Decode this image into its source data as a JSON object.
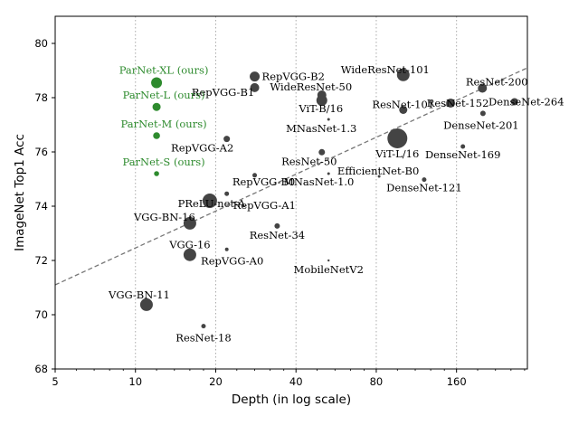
{
  "chart_data": {
    "type": "scatter",
    "xlabel": "Depth (in log scale)",
    "ylabel": "ImageNet Top1 Acc",
    "x_scale": "log2",
    "xlim": [
      5,
      295
    ],
    "ylim": [
      68,
      81
    ],
    "x_ticks": [
      5,
      10,
      20,
      40,
      80,
      160
    ],
    "y_ticks": [
      68,
      70,
      72,
      74,
      76,
      78,
      80
    ],
    "vertical_grid": "dotted at x ticks",
    "colors": {
      "ours": "#2e8b2e",
      "baseline": "#444444",
      "trend": "#777777"
    },
    "trend_line": {
      "style": "dashed",
      "from": [
        5,
        71.1
      ],
      "to": [
        295,
        79.1
      ]
    },
    "points": [
      {
        "name": "ParNet-XL (ours)",
        "x": 12,
        "y": 78.55,
        "size": 6,
        "group": "ours"
      },
      {
        "name": "ParNet-L (ours)",
        "x": 12,
        "y": 77.66,
        "size": 4.5,
        "group": "ours"
      },
      {
        "name": "ParNet-M (ours)",
        "x": 12,
        "y": 76.6,
        "size": 3.8,
        "group": "ours"
      },
      {
        "name": "ParNet-S (ours)",
        "x": 12,
        "y": 75.2,
        "size": 2.8,
        "group": "ours"
      },
      {
        "name": "RepVGG-B2",
        "x": 28,
        "y": 78.78,
        "size": 5.5
      },
      {
        "name": "RepVGG-B1",
        "x": 28,
        "y": 78.37,
        "size": 5
      },
      {
        "name": "RepVGG-A2",
        "x": 22,
        "y": 76.48,
        "size": 3.5
      },
      {
        "name": "RepVGG-B0",
        "x": 28,
        "y": 75.14,
        "size": 2.5
      },
      {
        "name": "RepVGG-A1",
        "x": 22,
        "y": 74.46,
        "size": 2.5
      },
      {
        "name": "RepVGG-A0",
        "x": 22,
        "y": 72.41,
        "size": 2
      },
      {
        "name": "WideResNet-50",
        "x": 50,
        "y": 78.1,
        "size": 5
      },
      {
        "name": "ViT-B/16",
        "x": 50,
        "y": 77.9,
        "size": 6
      },
      {
        "name": "MNasNet-1.3",
        "x": 53,
        "y": 77.2,
        "size": 1.5
      },
      {
        "name": "WideResNet-101",
        "x": 101,
        "y": 78.84,
        "size": 7
      },
      {
        "name": "ResNet-200",
        "x": 200,
        "y": 78.35,
        "size": 5
      },
      {
        "name": "DenseNet-264",
        "x": 264,
        "y": 77.85,
        "size": 4
      },
      {
        "name": "ResNet-152",
        "x": 152,
        "y": 77.8,
        "size": 5
      },
      {
        "name": "ResNet-101",
        "x": 101,
        "y": 77.55,
        "size": 4.5
      },
      {
        "name": "DenseNet-201",
        "x": 201,
        "y": 77.42,
        "size": 3
      },
      {
        "name": "ViT-L/16",
        "x": 96,
        "y": 76.5,
        "size": 11
      },
      {
        "name": "DenseNet-169",
        "x": 169,
        "y": 76.2,
        "size": 2.5
      },
      {
        "name": "ResNet-50",
        "x": 50,
        "y": 75.99,
        "size": 3.5
      },
      {
        "name": "EfficientNet-B0",
        "x": 82,
        "y": 75.1,
        "size": 1.5
      },
      {
        "name": "MNasNet-1.0",
        "x": 53,
        "y": 75.2,
        "size": 1.5
      },
      {
        "name": "DenseNet-121",
        "x": 121,
        "y": 74.98,
        "size": 2.5
      },
      {
        "name": "PReLU-net-A",
        "x": 19,
        "y": 74.2,
        "size": 8
      },
      {
        "name": "VGG-BN-16",
        "x": 16,
        "y": 73.37,
        "size": 7
      },
      {
        "name": "ResNet-34",
        "x": 34,
        "y": 73.27,
        "size": 3
      },
      {
        "name": "VGG-16",
        "x": 16,
        "y": 72.21,
        "size": 7
      },
      {
        "name": "MobileNetV2",
        "x": 53,
        "y": 72.0,
        "size": 1.2
      },
      {
        "name": "VGG-BN-11",
        "x": 11,
        "y": 70.37,
        "size": 7
      },
      {
        "name": "ResNet-18",
        "x": 18,
        "y": 69.58,
        "size": 2.5
      }
    ]
  }
}
